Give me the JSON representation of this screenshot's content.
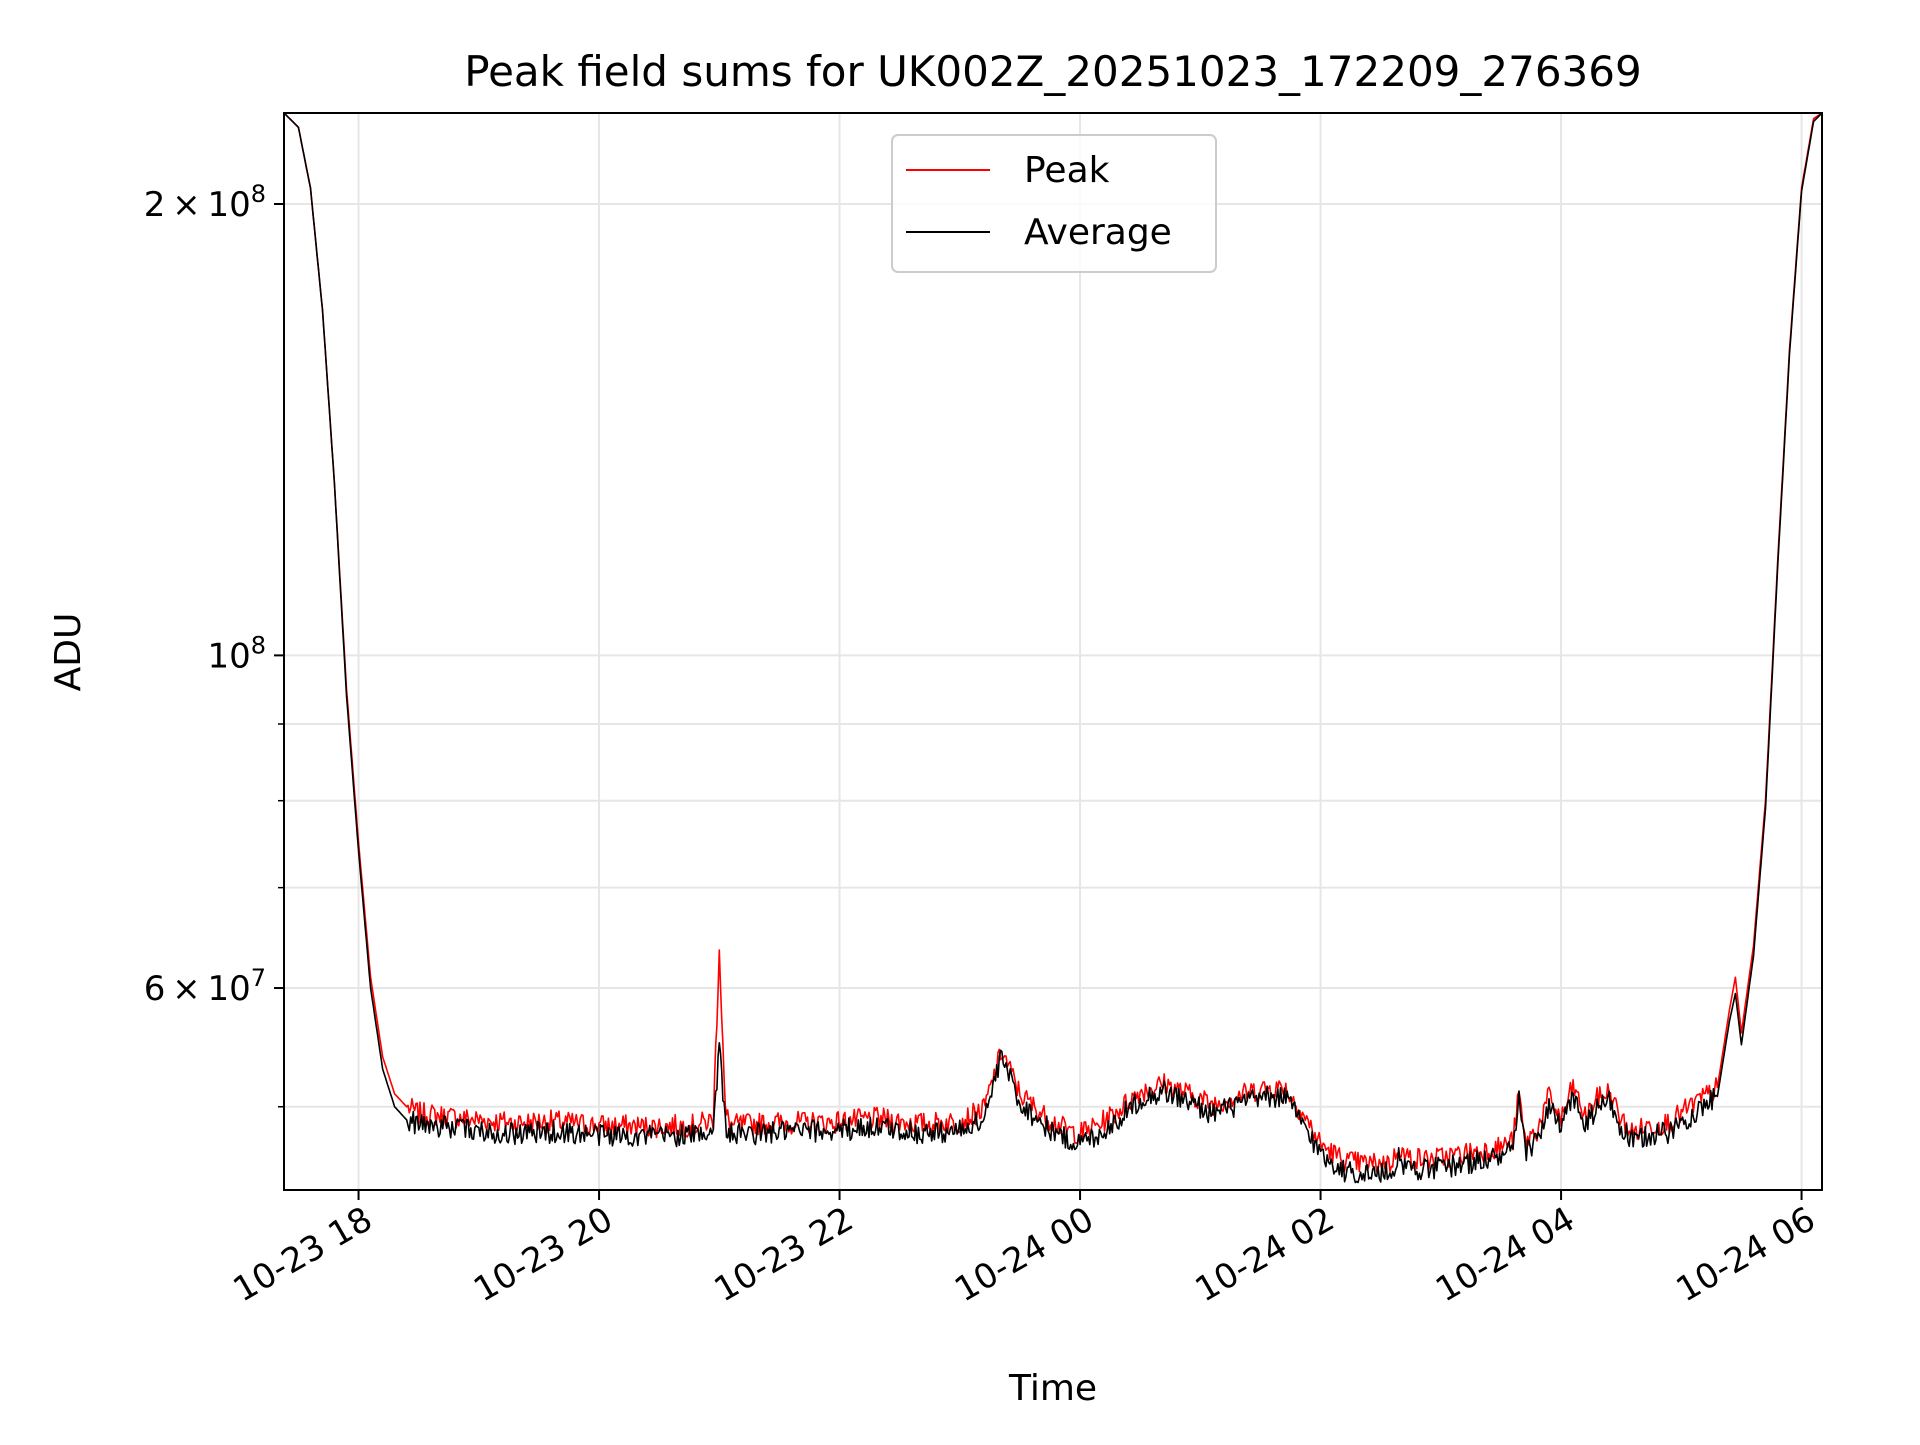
{
  "chart_data": {
    "type": "line",
    "title": "Peak field sums for UK002Z_20251023_172209_276369",
    "xlabel": "Time",
    "ylabel": "ADU",
    "yscale": "log",
    "grid": true,
    "legend_position": "top-center",
    "xlim_hours": [
      17.38,
      30.17
    ],
    "ylim": [
      44000000,
      230000000
    ],
    "x_ticks": [
      {
        "hours": 18,
        "label": "10-23 18"
      },
      {
        "hours": 20,
        "label": "10-23 20"
      },
      {
        "hours": 22,
        "label": "10-23 22"
      },
      {
        "hours": 24,
        "label": "10-24 00"
      },
      {
        "hours": 26,
        "label": "10-24 02"
      },
      {
        "hours": 28,
        "label": "10-24 04"
      },
      {
        "hours": 30,
        "label": "10-24 06"
      }
    ],
    "y_major_ticks": [
      {
        "value": 60000000,
        "mantissa": "6",
        "exponent": "7"
      },
      {
        "value": 100000000,
        "mantissa": "",
        "exponent": "8"
      },
      {
        "value": 200000000,
        "mantissa": "2",
        "exponent": "8"
      }
    ],
    "y_minor_ticks": [
      50000000,
      70000000,
      80000000,
      90000000
    ],
    "tick_base": "10",
    "times_sign": "×",
    "colors": {
      "peak": "#ff0000",
      "average": "#000000",
      "grid": "#e6e6e6"
    },
    "series": [
      {
        "name": "Peak",
        "color": "#ff0000",
        "x_hours": [
          17.38,
          17.5,
          17.6,
          17.7,
          17.8,
          17.9,
          18.0,
          18.1,
          18.2,
          18.3,
          18.4,
          18.5,
          18.7,
          19.0,
          19.3,
          19.6,
          20.0,
          20.4,
          20.8,
          20.95,
          21.0,
          21.05,
          21.1,
          21.5,
          21.9,
          22.3,
          22.7,
          23.0,
          23.2,
          23.35,
          23.5,
          23.7,
          23.9,
          24.0,
          24.15,
          24.3,
          24.5,
          24.7,
          24.9,
          25.1,
          25.3,
          25.5,
          25.7,
          25.85,
          26.0,
          26.2,
          26.4,
          26.6,
          26.65,
          26.7,
          26.9,
          27.1,
          27.3,
          27.5,
          27.6,
          27.65,
          27.7,
          27.8,
          27.9,
          28.0,
          28.1,
          28.2,
          28.3,
          28.4,
          28.5,
          28.6,
          28.7,
          28.9,
          29.1,
          29.2,
          29.3,
          29.4,
          29.45,
          29.5,
          29.6,
          29.7,
          29.8,
          29.9,
          30.0,
          30.1,
          30.17
        ],
        "values": [
          230000000,
          225000000,
          205000000,
          170000000,
          130000000,
          95000000,
          75000000,
          61000000,
          54000000,
          51000000,
          50000000,
          49500000,
          49300000,
          49000000,
          48800000,
          48900000,
          48600000,
          48500000,
          48600000,
          49000000,
          64000000,
          49500000,
          48600000,
          48800000,
          48800000,
          49100000,
          48700000,
          48900000,
          49800000,
          54500000,
          51000000,
          49300000,
          48200000,
          48000000,
          48600000,
          49600000,
          51200000,
          51800000,
          51000000,
          50200000,
          50800000,
          51400000,
          51500000,
          49500000,
          47200000,
          46000000,
          45800000,
          45900000,
          47200000,
          46300000,
          46100000,
          46400000,
          46700000,
          47000000,
          47500000,
          51000000,
          47400000,
          48200000,
          50800000,
          49000000,
          51600000,
          49200000,
          50600000,
          51200000,
          49000000,
          48000000,
          48500000,
          48800000,
          50200000,
          50800000,
          51500000,
          58000000,
          61000000,
          56000000,
          64000000,
          80000000,
          115000000,
          160000000,
          205000000,
          228000000,
          230000000
        ]
      },
      {
        "name": "Average",
        "color": "#000000",
        "x_hours": [
          17.38,
          17.5,
          17.6,
          17.7,
          17.8,
          17.9,
          18.0,
          18.1,
          18.2,
          18.3,
          18.4,
          18.5,
          18.7,
          19.0,
          19.3,
          19.6,
          20.0,
          20.4,
          20.8,
          20.95,
          21.0,
          21.05,
          21.1,
          21.5,
          21.9,
          22.3,
          22.7,
          23.0,
          23.2,
          23.35,
          23.5,
          23.7,
          23.9,
          24.0,
          24.15,
          24.3,
          24.5,
          24.7,
          24.9,
          25.1,
          25.3,
          25.5,
          25.7,
          25.85,
          26.0,
          26.2,
          26.4,
          26.6,
          26.65,
          26.7,
          26.9,
          27.1,
          27.3,
          27.5,
          27.6,
          27.65,
          27.7,
          27.8,
          27.9,
          28.0,
          28.1,
          28.2,
          28.3,
          28.4,
          28.5,
          28.6,
          28.7,
          28.9,
          29.1,
          29.2,
          29.3,
          29.4,
          29.45,
          29.5,
          29.6,
          29.7,
          29.8,
          29.9,
          30.0,
          30.1,
          30.17
        ],
        "values": [
          230000000,
          225000000,
          205000000,
          170000000,
          130000000,
          94000000,
          74000000,
          60000000,
          53000000,
          50000000,
          49000000,
          48700000,
          48500000,
          48200000,
          48000000,
          48100000,
          47900000,
          47800000,
          47900000,
          48300000,
          55000000,
          48600000,
          47900000,
          48100000,
          48200000,
          48500000,
          48000000,
          48200000,
          49100000,
          54000000,
          50300000,
          48600000,
          47500000,
          47300000,
          47900000,
          48900000,
          50600000,
          51200000,
          50400000,
          49500000,
          50100000,
          50700000,
          50800000,
          48800000,
          46500000,
          45300000,
          45100000,
          45200000,
          46500000,
          45600000,
          45400000,
          45700000,
          46000000,
          46300000,
          46800000,
          50400000,
          46700000,
          47500000,
          50100000,
          48300000,
          50900000,
          48500000,
          49900000,
          50500000,
          48300000,
          47300000,
          47800000,
          48100000,
          49500000,
          50100000,
          50800000,
          57000000,
          59500000,
          55000000,
          63000000,
          79000000,
          114000000,
          159000000,
          204000000,
          227000000,
          230000000
        ]
      }
    ]
  }
}
